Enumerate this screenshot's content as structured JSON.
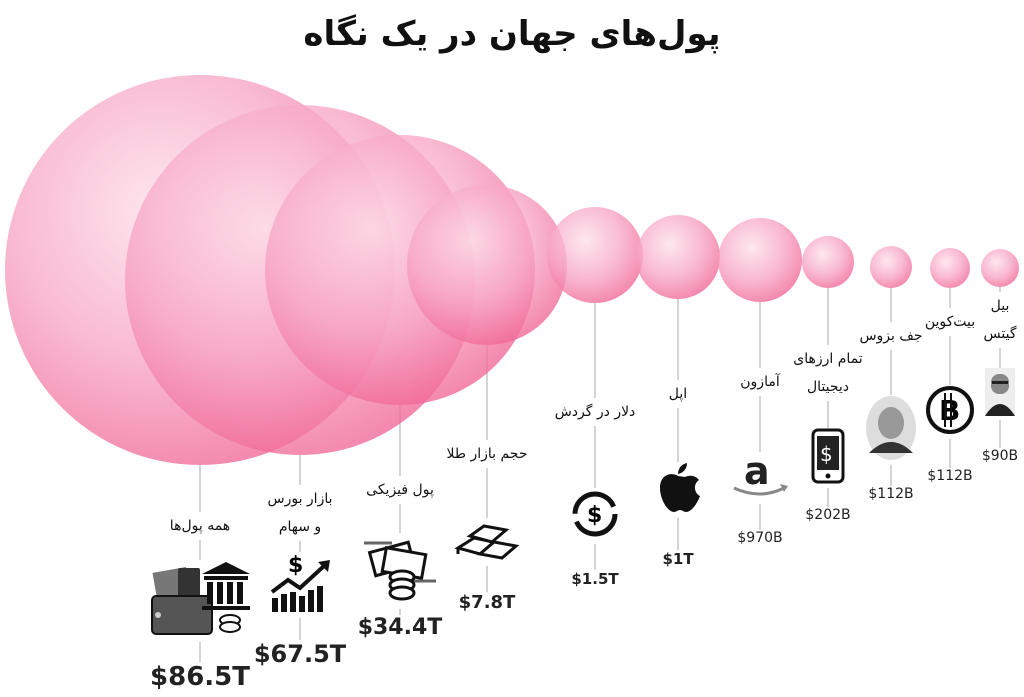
{
  "title": "پول‌های جهان در یک نگاه",
  "colors": {
    "bubble": "#f06292",
    "bubble_light": "#fbc4d8",
    "line": "#aaaaaa",
    "text": "#111111"
  },
  "chart_data": {
    "type": "bubble",
    "title": "پول‌های جهان در یک نگاه",
    "items": [
      {
        "label": [
          "همه پول‌ها"
        ],
        "value": "$86.5T",
        "icon": "wallet-bank-coins-icon"
      },
      {
        "label": [
          "بازار بورس",
          "و سهام"
        ],
        "value": "$67.5T",
        "icon": "stock-chart-dollar-icon"
      },
      {
        "label": [
          "پول فیزیکی"
        ],
        "value": "$34.4T",
        "icon": "banknotes-coins-icon"
      },
      {
        "label": [
          "حجم بازار طلا"
        ],
        "value": "$7.8T",
        "icon": "gold-bars-icon"
      },
      {
        "label": [
          "دلار در گردش"
        ],
        "value": "$1.5T",
        "icon": "dollar-cycle-icon"
      },
      {
        "label": [
          "اپل"
        ],
        "value": "$1T",
        "icon": "apple-logo-icon"
      },
      {
        "label": [
          "آمازون"
        ],
        "value": "$970B",
        "icon": "amazon-logo-icon"
      },
      {
        "label": [
          "تمام ارزهای",
          "دیجیتال"
        ],
        "value": "$202B",
        "icon": "phone-dollar-icon"
      },
      {
        "label": [
          "جف بزوس"
        ],
        "value": "$112B",
        "icon": "jeff-bezos-photo-icon"
      },
      {
        "label": [
          "بیت‌کوین"
        ],
        "value": "$112B",
        "icon": "bitcoin-icon"
      },
      {
        "label": [
          "بیل",
          "گیتس"
        ],
        "value": "$90B",
        "icon": "bill-gates-photo-icon"
      }
    ]
  }
}
